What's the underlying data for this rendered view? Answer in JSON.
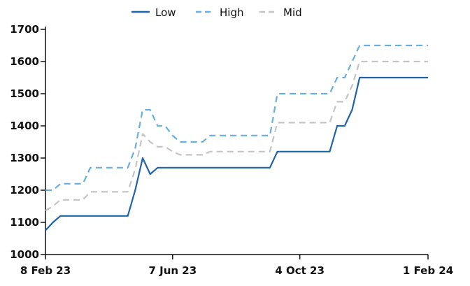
{
  "chart_data": {
    "type": "line",
    "title": "",
    "xlabel": "",
    "ylabel": "",
    "ylim": [
      1000,
      1700
    ],
    "xlim": [
      "2023-02-08",
      "2024-02-01"
    ],
    "y_ticks": [
      1000,
      1100,
      1200,
      1300,
      1400,
      1500,
      1600,
      1700
    ],
    "x_ticks": [
      {
        "date": "2023-02-08",
        "label": "8 Feb 23"
      },
      {
        "date": "2023-06-07",
        "label": "7 Jun 23"
      },
      {
        "date": "2023-10-04",
        "label": "4 Oct 23"
      },
      {
        "date": "2024-02-01",
        "label": "1 Feb 24"
      }
    ],
    "grid": false,
    "legend_position": "top-center",
    "series": [
      {
        "name": "Low",
        "color": "#1f63a8",
        "style": "solid",
        "points": [
          [
            "2023-02-08",
            1075
          ],
          [
            "2023-02-15",
            1100
          ],
          [
            "2023-02-22",
            1120
          ],
          [
            "2023-03-01",
            1120
          ],
          [
            "2023-03-08",
            1120
          ],
          [
            "2023-03-15",
            1120
          ],
          [
            "2023-03-22",
            1120
          ],
          [
            "2023-03-29",
            1120
          ],
          [
            "2023-04-05",
            1120
          ],
          [
            "2023-04-12",
            1120
          ],
          [
            "2023-04-19",
            1120
          ],
          [
            "2023-04-26",
            1120
          ],
          [
            "2023-05-03",
            1200
          ],
          [
            "2023-05-10",
            1300
          ],
          [
            "2023-05-17",
            1250
          ],
          [
            "2023-05-24",
            1270
          ],
          [
            "2023-05-31",
            1270
          ],
          [
            "2023-06-07",
            1270
          ],
          [
            "2023-06-14",
            1270
          ],
          [
            "2023-06-21",
            1270
          ],
          [
            "2023-06-28",
            1270
          ],
          [
            "2023-07-05",
            1270
          ],
          [
            "2023-07-12",
            1270
          ],
          [
            "2023-07-19",
            1270
          ],
          [
            "2023-07-26",
            1270
          ],
          [
            "2023-08-02",
            1270
          ],
          [
            "2023-08-09",
            1270
          ],
          [
            "2023-08-16",
            1270
          ],
          [
            "2023-08-23",
            1270
          ],
          [
            "2023-08-30",
            1270
          ],
          [
            "2023-09-06",
            1270
          ],
          [
            "2023-09-13",
            1320
          ],
          [
            "2023-09-20",
            1320
          ],
          [
            "2023-09-27",
            1320
          ],
          [
            "2023-10-04",
            1320
          ],
          [
            "2023-10-11",
            1320
          ],
          [
            "2023-10-18",
            1320
          ],
          [
            "2023-10-25",
            1320
          ],
          [
            "2023-11-01",
            1320
          ],
          [
            "2023-11-08",
            1400
          ],
          [
            "2023-11-15",
            1400
          ],
          [
            "2023-11-22",
            1450
          ],
          [
            "2023-11-29",
            1550
          ],
          [
            "2023-12-06",
            1550
          ],
          [
            "2023-12-13",
            1550
          ],
          [
            "2023-12-20",
            1550
          ],
          [
            "2023-12-27",
            1550
          ],
          [
            "2024-01-03",
            1550
          ],
          [
            "2024-01-10",
            1550
          ],
          [
            "2024-01-17",
            1550
          ],
          [
            "2024-01-24",
            1550
          ],
          [
            "2024-02-01",
            1550
          ]
        ]
      },
      {
        "name": "High",
        "color": "#6aaee0",
        "style": "dashed",
        "points": [
          [
            "2023-02-08",
            1200
          ],
          [
            "2023-02-15",
            1200
          ],
          [
            "2023-02-22",
            1220
          ],
          [
            "2023-03-01",
            1220
          ],
          [
            "2023-03-08",
            1220
          ],
          [
            "2023-03-15",
            1220
          ],
          [
            "2023-03-22",
            1270
          ],
          [
            "2023-03-29",
            1270
          ],
          [
            "2023-04-05",
            1270
          ],
          [
            "2023-04-12",
            1270
          ],
          [
            "2023-04-19",
            1270
          ],
          [
            "2023-04-26",
            1270
          ],
          [
            "2023-05-03",
            1330
          ],
          [
            "2023-05-10",
            1450
          ],
          [
            "2023-05-17",
            1450
          ],
          [
            "2023-05-24",
            1400
          ],
          [
            "2023-05-31",
            1400
          ],
          [
            "2023-06-07",
            1370
          ],
          [
            "2023-06-14",
            1350
          ],
          [
            "2023-06-21",
            1350
          ],
          [
            "2023-06-28",
            1350
          ],
          [
            "2023-07-05",
            1350
          ],
          [
            "2023-07-12",
            1370
          ],
          [
            "2023-07-19",
            1370
          ],
          [
            "2023-07-26",
            1370
          ],
          [
            "2023-08-02",
            1370
          ],
          [
            "2023-08-09",
            1370
          ],
          [
            "2023-08-16",
            1370
          ],
          [
            "2023-08-23",
            1370
          ],
          [
            "2023-08-30",
            1370
          ],
          [
            "2023-09-06",
            1370
          ],
          [
            "2023-09-13",
            1500
          ],
          [
            "2023-09-20",
            1500
          ],
          [
            "2023-09-27",
            1500
          ],
          [
            "2023-10-04",
            1500
          ],
          [
            "2023-10-11",
            1500
          ],
          [
            "2023-10-18",
            1500
          ],
          [
            "2023-10-25",
            1500
          ],
          [
            "2023-11-01",
            1500
          ],
          [
            "2023-11-08",
            1550
          ],
          [
            "2023-11-15",
            1550
          ],
          [
            "2023-11-22",
            1600
          ],
          [
            "2023-11-29",
            1650
          ],
          [
            "2023-12-06",
            1650
          ],
          [
            "2023-12-13",
            1650
          ],
          [
            "2023-12-20",
            1650
          ],
          [
            "2023-12-27",
            1650
          ],
          [
            "2024-01-03",
            1650
          ],
          [
            "2024-01-10",
            1650
          ],
          [
            "2024-01-17",
            1650
          ],
          [
            "2024-01-24",
            1650
          ],
          [
            "2024-02-01",
            1650
          ]
        ]
      },
      {
        "name": "Mid",
        "color": "#c4c4c4",
        "style": "dashed",
        "points": [
          [
            "2023-02-08",
            1137
          ],
          [
            "2023-02-15",
            1150
          ],
          [
            "2023-02-22",
            1170
          ],
          [
            "2023-03-01",
            1170
          ],
          [
            "2023-03-08",
            1170
          ],
          [
            "2023-03-15",
            1170
          ],
          [
            "2023-03-22",
            1195
          ],
          [
            "2023-03-29",
            1195
          ],
          [
            "2023-04-05",
            1195
          ],
          [
            "2023-04-12",
            1195
          ],
          [
            "2023-04-19",
            1195
          ],
          [
            "2023-04-26",
            1195
          ],
          [
            "2023-05-03",
            1265
          ],
          [
            "2023-05-10",
            1375
          ],
          [
            "2023-05-17",
            1350
          ],
          [
            "2023-05-24",
            1335
          ],
          [
            "2023-05-31",
            1335
          ],
          [
            "2023-06-07",
            1320
          ],
          [
            "2023-06-14",
            1310
          ],
          [
            "2023-06-21",
            1310
          ],
          [
            "2023-06-28",
            1310
          ],
          [
            "2023-07-05",
            1310
          ],
          [
            "2023-07-12",
            1320
          ],
          [
            "2023-07-19",
            1320
          ],
          [
            "2023-07-26",
            1320
          ],
          [
            "2023-08-02",
            1320
          ],
          [
            "2023-08-09",
            1320
          ],
          [
            "2023-08-16",
            1320
          ],
          [
            "2023-08-23",
            1320
          ],
          [
            "2023-08-30",
            1320
          ],
          [
            "2023-09-06",
            1320
          ],
          [
            "2023-09-13",
            1410
          ],
          [
            "2023-09-20",
            1410
          ],
          [
            "2023-09-27",
            1410
          ],
          [
            "2023-10-04",
            1410
          ],
          [
            "2023-10-11",
            1410
          ],
          [
            "2023-10-18",
            1410
          ],
          [
            "2023-10-25",
            1410
          ],
          [
            "2023-11-01",
            1410
          ],
          [
            "2023-11-08",
            1475
          ],
          [
            "2023-11-15",
            1475
          ],
          [
            "2023-11-22",
            1525
          ],
          [
            "2023-11-29",
            1600
          ],
          [
            "2023-12-06",
            1600
          ],
          [
            "2023-12-13",
            1600
          ],
          [
            "2023-12-20",
            1600
          ],
          [
            "2023-12-27",
            1600
          ],
          [
            "2024-01-03",
            1600
          ],
          [
            "2024-01-10",
            1600
          ],
          [
            "2024-01-17",
            1600
          ],
          [
            "2024-01-24",
            1600
          ],
          [
            "2024-02-01",
            1600
          ]
        ]
      }
    ]
  }
}
